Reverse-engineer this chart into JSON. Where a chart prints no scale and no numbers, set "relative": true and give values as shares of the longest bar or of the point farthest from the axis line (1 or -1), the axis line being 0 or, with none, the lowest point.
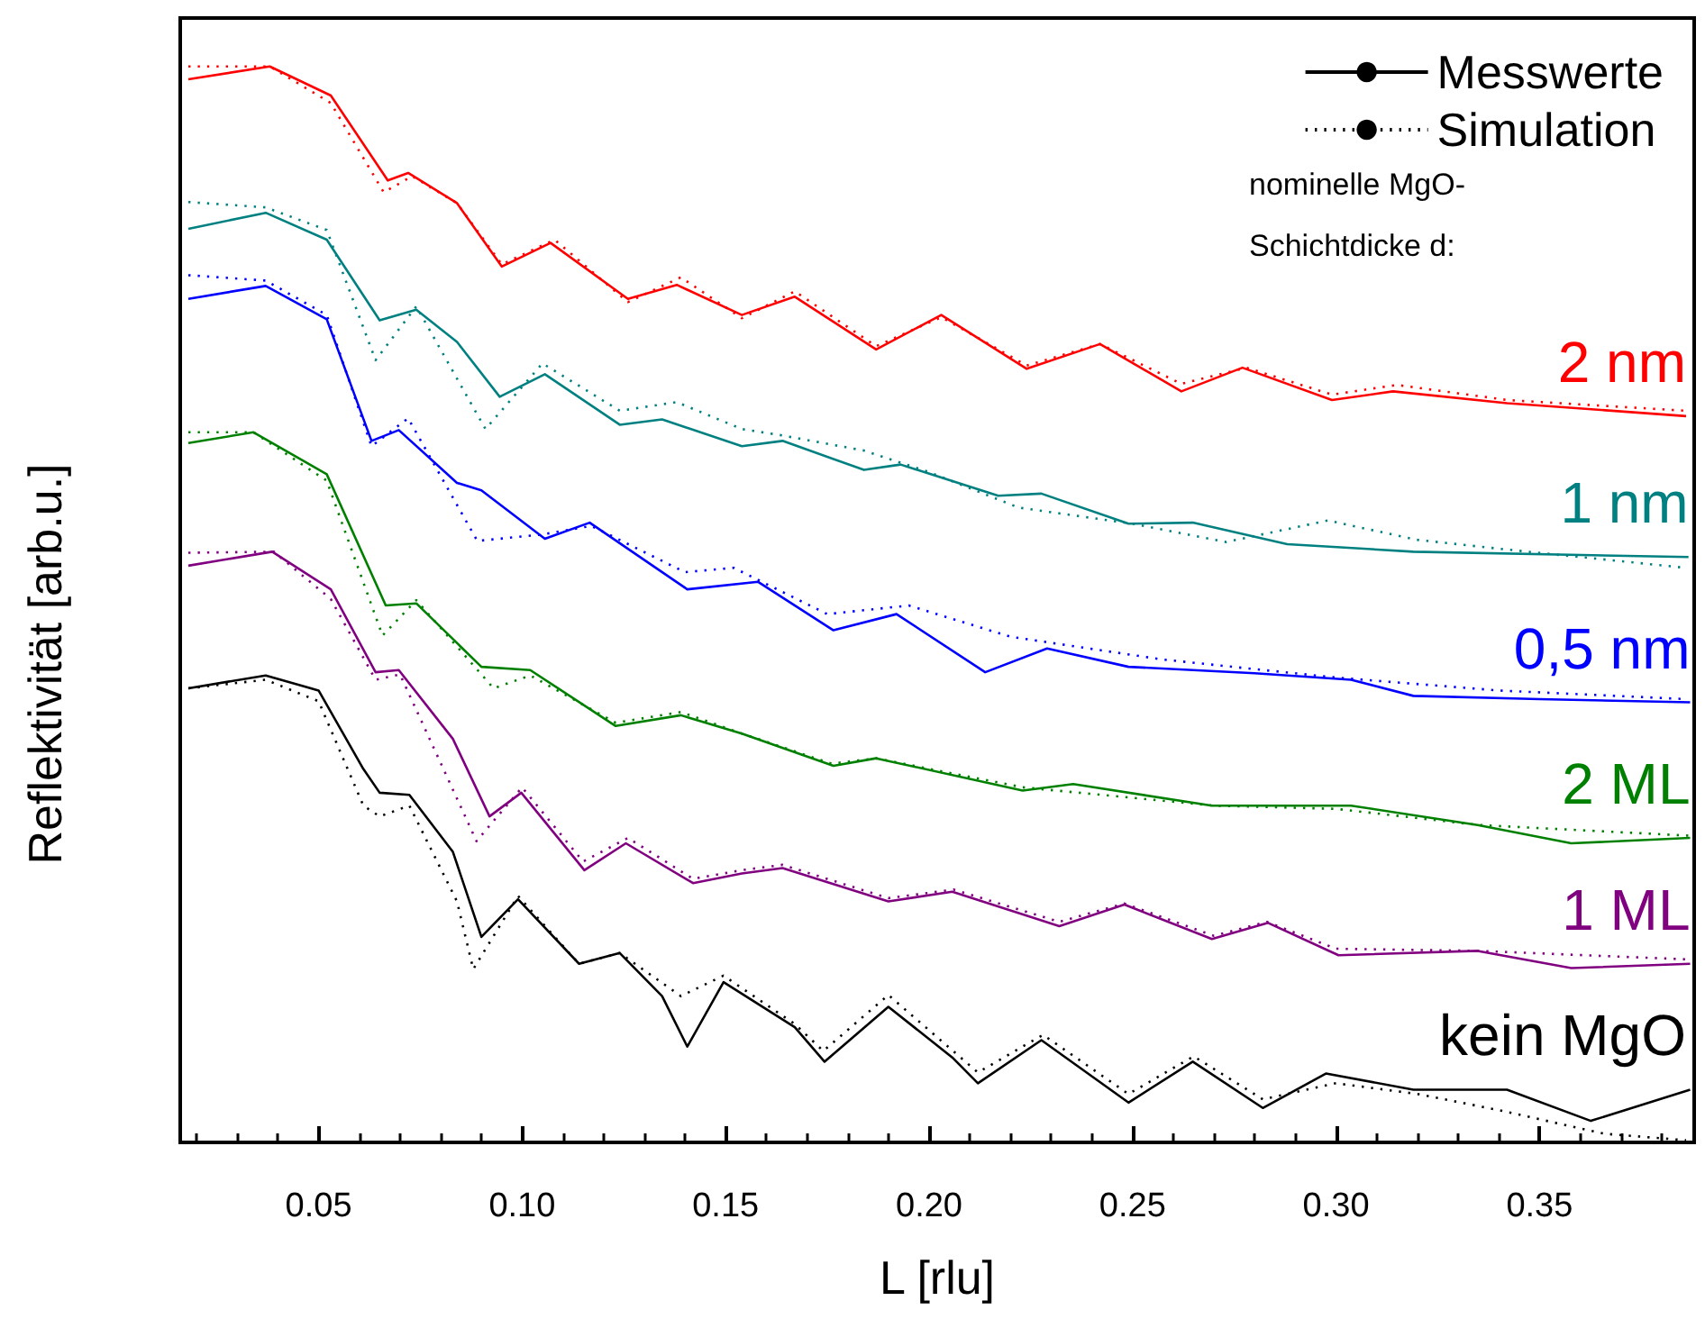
{
  "chart_data": {
    "type": "line",
    "relative": true,
    "xlabel": "L [rlu]",
    "ylabel": "Reflektivität [arb.u.]",
    "xlim": [
      0.016,
      0.388
    ],
    "xticks": [
      {
        "value": 0.05,
        "label": "0.05"
      },
      {
        "value": 0.1,
        "label": "0.10"
      },
      {
        "value": 0.15,
        "label": "0.15"
      },
      {
        "value": 0.2,
        "label": "0.20"
      },
      {
        "value": 0.25,
        "label": "0.25"
      },
      {
        "value": 0.3,
        "label": "0.30"
      },
      {
        "value": 0.35,
        "label": "0.35"
      }
    ],
    "tick_labels": "x",
    "grid": false,
    "legend": "top right",
    "marker": "none",
    "line_style": "solid",
    "annotations": [
      "nominelle MgO-",
      "Schichtdicke d:",
      {
        "text": "kein MgO",
        "x": 0.386,
        "y": 0.049
      }
    ],
    "series": [
      {
        "name": "2 nm",
        "color": "#ff0000",
        "x": [
          0.018,
          0.038,
          0.053,
          0.067,
          0.072,
          0.084,
          0.095,
          0.107,
          0.126,
          0.138,
          0.154,
          0.167,
          0.187,
          0.203,
          0.224,
          0.242,
          0.262,
          0.277,
          0.299,
          0.314,
          0.342,
          0.386
        ],
        "values": [
          0.988,
          1.0,
          0.973,
          0.894,
          0.901,
          0.873,
          0.814,
          0.836,
          0.784,
          0.797,
          0.769,
          0.786,
          0.737,
          0.769,
          0.719,
          0.742,
          0.698,
          0.72,
          0.69,
          0.698,
          0.687,
          0.675
        ]
      },
      {
        "name": "1 nm",
        "color": "#008080",
        "x": [
          0.018,
          0.037,
          0.052,
          0.065,
          0.074,
          0.084,
          0.0945,
          0.1056,
          0.124,
          0.1344,
          0.154,
          0.164,
          0.184,
          0.193,
          0.217,
          0.2276,
          0.249,
          0.2648,
          0.288,
          0.319,
          0.3866
        ],
        "values": [
          0.849,
          0.864,
          0.839,
          0.764,
          0.774,
          0.744,
          0.693,
          0.714,
          0.667,
          0.672,
          0.647,
          0.652,
          0.625,
          0.63,
          0.601,
          0.603,
          0.575,
          0.576,
          0.556,
          0.549,
          0.544
        ]
      },
      {
        "name": "0,5 nm",
        "color": "#0000ff",
        "x": [
          0.018,
          0.037,
          0.052,
          0.063,
          0.0697,
          0.084,
          0.09,
          0.1056,
          0.1166,
          0.1406,
          0.158,
          0.1765,
          0.192,
          0.2138,
          0.229,
          0.249,
          0.28,
          0.3037,
          0.319,
          0.35,
          0.387
        ],
        "values": [
          0.784,
          0.796,
          0.765,
          0.652,
          0.662,
          0.613,
          0.606,
          0.561,
          0.576,
          0.514,
          0.521,
          0.476,
          0.491,
          0.437,
          0.459,
          0.442,
          0.436,
          0.43,
          0.415,
          0.412,
          0.409
        ]
      },
      {
        "name": "2 ML",
        "color": "#008000",
        "x": [
          0.018,
          0.034,
          0.052,
          0.0665,
          0.074,
          0.09,
          0.102,
          0.123,
          0.139,
          0.154,
          0.1765,
          0.187,
          0.223,
          0.2354,
          0.2695,
          0.3037,
          0.3348,
          0.3578,
          0.387
        ],
        "values": [
          0.65,
          0.66,
          0.621,
          0.499,
          0.501,
          0.442,
          0.439,
          0.387,
          0.397,
          0.38,
          0.35,
          0.357,
          0.327,
          0.333,
          0.313,
          0.313,
          0.295,
          0.278,
          0.283
        ]
      },
      {
        "name": "1 ML",
        "color": "#800080",
        "x": [
          0.018,
          0.0386,
          0.053,
          0.064,
          0.0697,
          0.083,
          0.092,
          0.0998,
          0.1153,
          0.1255,
          0.142,
          0.154,
          0.164,
          0.19,
          0.2057,
          0.232,
          0.248,
          0.2695,
          0.2833,
          0.3006,
          0.3348,
          0.3578,
          0.387
        ],
        "values": [
          0.536,
          0.549,
          0.514,
          0.437,
          0.439,
          0.375,
          0.303,
          0.325,
          0.253,
          0.278,
          0.241,
          0.25,
          0.255,
          0.224,
          0.233,
          0.201,
          0.221,
          0.189,
          0.204,
          0.174,
          0.178,
          0.162,
          0.166
        ]
      },
      {
        "name": "Messwerte",
        "color": "#000000",
        "line_style": "solid",
        "x": [
          0.018,
          0.037,
          0.05,
          0.061,
          0.065,
          0.0723,
          0.083,
          0.09,
          0.099,
          0.114,
          0.124,
          0.1344,
          0.1406,
          0.1495,
          0.167,
          0.1743,
          0.19,
          0.2057,
          0.212,
          0.2276,
          0.249,
          0.2648,
          0.282,
          0.2975,
          0.319,
          0.342,
          0.3626,
          0.387
        ],
        "values": [
          0.422,
          0.434,
          0.42,
          0.347,
          0.325,
          0.323,
          0.27,
          0.191,
          0.226,
          0.166,
          0.176,
          0.136,
          0.089,
          0.149,
          0.107,
          0.075,
          0.126,
          0.079,
          0.055,
          0.095,
          0.037,
          0.075,
          0.032,
          0.064,
          0.049,
          0.049,
          0.02,
          0.049
        ]
      },
      {
        "color": "#ff0000",
        "line_style": "dotted",
        "x": [
          0.018,
          0.038,
          0.053,
          0.066,
          0.073,
          0.084,
          0.095,
          0.108,
          0.126,
          0.139,
          0.154,
          0.167,
          0.187,
          0.203,
          0.224,
          0.242,
          0.262,
          0.278,
          0.299,
          0.315,
          0.342,
          0.386
        ],
        "values": [
          1.0,
          1.0,
          0.966,
          0.883,
          0.898,
          0.873,
          0.816,
          0.839,
          0.781,
          0.804,
          0.766,
          0.791,
          0.74,
          0.767,
          0.722,
          0.742,
          0.705,
          0.72,
          0.695,
          0.704,
          0.69,
          0.68
        ]
      },
      {
        "color": "#008080",
        "line_style": "dotted",
        "x": [
          0.018,
          0.037,
          0.052,
          0.064,
          0.074,
          0.091,
          0.105,
          0.124,
          0.138,
          0.154,
          0.164,
          0.184,
          0.2,
          0.222,
          0.25,
          0.273,
          0.298,
          0.32,
          0.342,
          0.386
        ],
        "values": [
          0.874,
          0.869,
          0.848,
          0.727,
          0.777,
          0.663,
          0.724,
          0.68,
          0.688,
          0.663,
          0.657,
          0.643,
          0.623,
          0.59,
          0.575,
          0.558,
          0.578,
          0.56,
          0.551,
          0.534
        ]
      },
      {
        "color": "#0000ff",
        "line_style": "dotted",
        "x": [
          0.018,
          0.037,
          0.052,
          0.063,
          0.072,
          0.089,
          0.105,
          0.117,
          0.14,
          0.152,
          0.175,
          0.195,
          0.22,
          0.257,
          0.3,
          0.34,
          0.386
        ],
        "values": [
          0.806,
          0.801,
          0.769,
          0.647,
          0.673,
          0.559,
          0.565,
          0.573,
          0.53,
          0.534,
          0.491,
          0.499,
          0.47,
          0.449,
          0.432,
          0.42,
          0.412
        ]
      },
      {
        "color": "#008000",
        "line_style": "dotted",
        "x": [
          0.018,
          0.034,
          0.052,
          0.0657,
          0.074,
          0.093,
          0.102,
          0.123,
          0.139,
          0.154,
          0.176,
          0.187,
          0.223,
          0.27,
          0.3,
          0.335,
          0.387
        ],
        "values": [
          0.66,
          0.66,
          0.615,
          0.471,
          0.504,
          0.422,
          0.434,
          0.39,
          0.4,
          0.38,
          0.352,
          0.357,
          0.33,
          0.313,
          0.31,
          0.295,
          0.285
        ]
      },
      {
        "color": "#800080",
        "line_style": "dotted",
        "x": [
          0.018,
          0.039,
          0.053,
          0.064,
          0.07,
          0.0888,
          0.1,
          0.115,
          0.126,
          0.142,
          0.154,
          0.164,
          0.19,
          0.206,
          0.232,
          0.248,
          0.27,
          0.283,
          0.3,
          0.335,
          0.387
        ],
        "values": [
          0.548,
          0.549,
          0.505,
          0.43,
          0.435,
          0.28,
          0.33,
          0.261,
          0.283,
          0.245,
          0.253,
          0.258,
          0.227,
          0.235,
          0.205,
          0.222,
          0.192,
          0.205,
          0.18,
          0.178,
          0.17
        ]
      },
      {
        "name": "Simulation",
        "color": "#000000",
        "line_style": "dotted",
        "x": [
          0.018,
          0.037,
          0.05,
          0.061,
          0.065,
          0.0723,
          0.084,
          0.088,
          0.099,
          0.114,
          0.124,
          0.139,
          0.1495,
          0.167,
          0.174,
          0.19,
          0.212,
          0.228,
          0.249,
          0.265,
          0.282,
          0.3,
          0.32,
          0.34,
          0.366,
          0.386
        ],
        "values": [
          0.422,
          0.43,
          0.41,
          0.313,
          0.303,
          0.313,
          0.224,
          0.161,
          0.229,
          0.166,
          0.176,
          0.136,
          0.155,
          0.11,
          0.085,
          0.137,
          0.065,
          0.1,
          0.045,
          0.08,
          0.04,
          0.055,
          0.045,
          0.03,
          0.008,
          0.002
        ]
      }
    ]
  }
}
